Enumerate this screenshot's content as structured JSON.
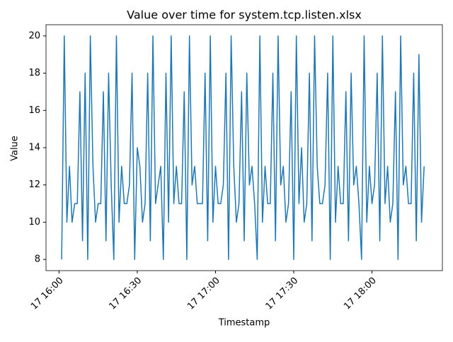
{
  "chart_data": {
    "type": "line",
    "title": "Value over time for system.tcp.listen.xlsx",
    "x_label": "Timestamp",
    "y_label": "Value",
    "x_start": "17 16:01",
    "x_step_minutes": 1,
    "series": [
      {
        "name": "Value",
        "color": "#1f77b4",
        "values": [
          8,
          20,
          10,
          13,
          10,
          11,
          11,
          17,
          9,
          18,
          8,
          20,
          13,
          10,
          11,
          11,
          17,
          9,
          18,
          12,
          8,
          20,
          10,
          13,
          11,
          11,
          12,
          18,
          8,
          14,
          13,
          10,
          11,
          18,
          9,
          20,
          11,
          12,
          13,
          8,
          18,
          10,
          20,
          11,
          13,
          11,
          11,
          17,
          8,
          20,
          12,
          13,
          11,
          11,
          11,
          18,
          9,
          20,
          10,
          13,
          11,
          11,
          12,
          18,
          8,
          20,
          13,
          10,
          11,
          17,
          9,
          18,
          12,
          13,
          11,
          8,
          20,
          10,
          13,
          11,
          11,
          18,
          9,
          20,
          12,
          13,
          10,
          11,
          17,
          8,
          20,
          11,
          14,
          10,
          11,
          18,
          9,
          20,
          13,
          11,
          11,
          12,
          18,
          8,
          20,
          10,
          13,
          11,
          11,
          17,
          9,
          18,
          12,
          13,
          11,
          8,
          20,
          10,
          13,
          11,
          12,
          18,
          9,
          20,
          11,
          13,
          10,
          11,
          17,
          8,
          20,
          12,
          13,
          11,
          11,
          18,
          9,
          19,
          10,
          13
        ]
      }
    ],
    "xlim": [
      "17 15:55",
      "17 18:27"
    ],
    "xticks": [
      "17 16:00",
      "17 16:30",
      "17 17:00",
      "17 17:30",
      "17 18:00"
    ],
    "ylim": [
      7.4,
      20.6
    ],
    "yticks": [
      8,
      10,
      12,
      14,
      16,
      18,
      20
    ],
    "grid": false
  }
}
